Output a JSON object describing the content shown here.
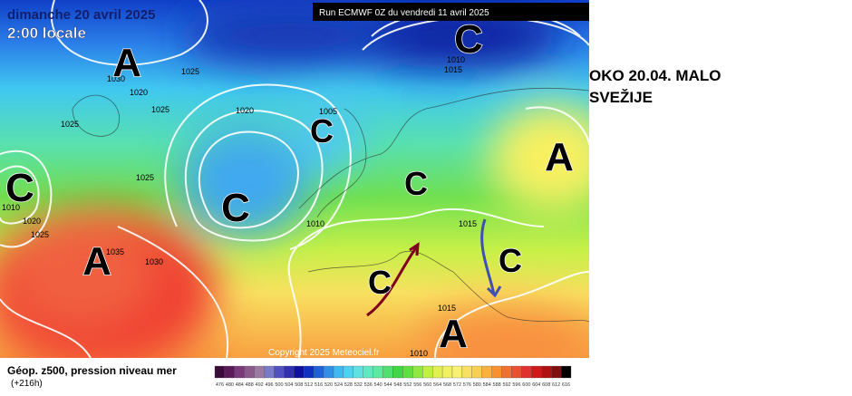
{
  "header": {
    "date": "dimanche 20 avril 2025",
    "time": "2:00 locale",
    "run": "Run ECMWF 0Z du vendredi 11 avril 2025"
  },
  "note": {
    "line1": "OKO 20.04. MALO",
    "line2": "SVEŽIJE"
  },
  "map": {
    "copyright": "Copyright 2025 Meteociel.fr",
    "centers": [
      "A",
      "C",
      "C",
      "A",
      "C",
      "C",
      "C",
      "A",
      "C",
      "C",
      "A"
    ],
    "isobar_labels": [
      "1030",
      "1025",
      "1020",
      "1025",
      "1025",
      "1020",
      "1005",
      "1025",
      "1010",
      "1020",
      "1025",
      "1035",
      "1030",
      "1010",
      "1015",
      "1015",
      "1010",
      "1010",
      "1015"
    ]
  },
  "legend": {
    "title": "Géop. z500, pression niveau mer",
    "lead": "(+216h)",
    "colors": [
      "#3a0a3a",
      "#5a1a5a",
      "#7a3a7a",
      "#8a5a8a",
      "#9a7aa0",
      "#7a7ac8",
      "#5050c0",
      "#3030b0",
      "#1010a0",
      "#1030c0",
      "#2060d8",
      "#3090e8",
      "#40b8f0",
      "#50d0f0",
      "#60e0e0",
      "#60e8c0",
      "#60e8a0",
      "#50e070",
      "#40d840",
      "#60e040",
      "#90e840",
      "#c0f040",
      "#e0f050",
      "#f0f060",
      "#f8f070",
      "#f8e060",
      "#f8d050",
      "#f8b040",
      "#f89030",
      "#f07030",
      "#e85030",
      "#e03030",
      "#d01818",
      "#b01010",
      "#801010",
      "#000000"
    ],
    "ticks": [
      "476",
      "480",
      "484",
      "488",
      "492",
      "496",
      "500",
      "504",
      "508",
      "512",
      "516",
      "520",
      "524",
      "528",
      "532",
      "536",
      "540",
      "544",
      "548",
      "552",
      "556",
      "560",
      "564",
      "568",
      "572",
      "576",
      "580",
      "584",
      "588",
      "592",
      "596",
      "600",
      "604",
      "608",
      "612",
      "616"
    ]
  }
}
